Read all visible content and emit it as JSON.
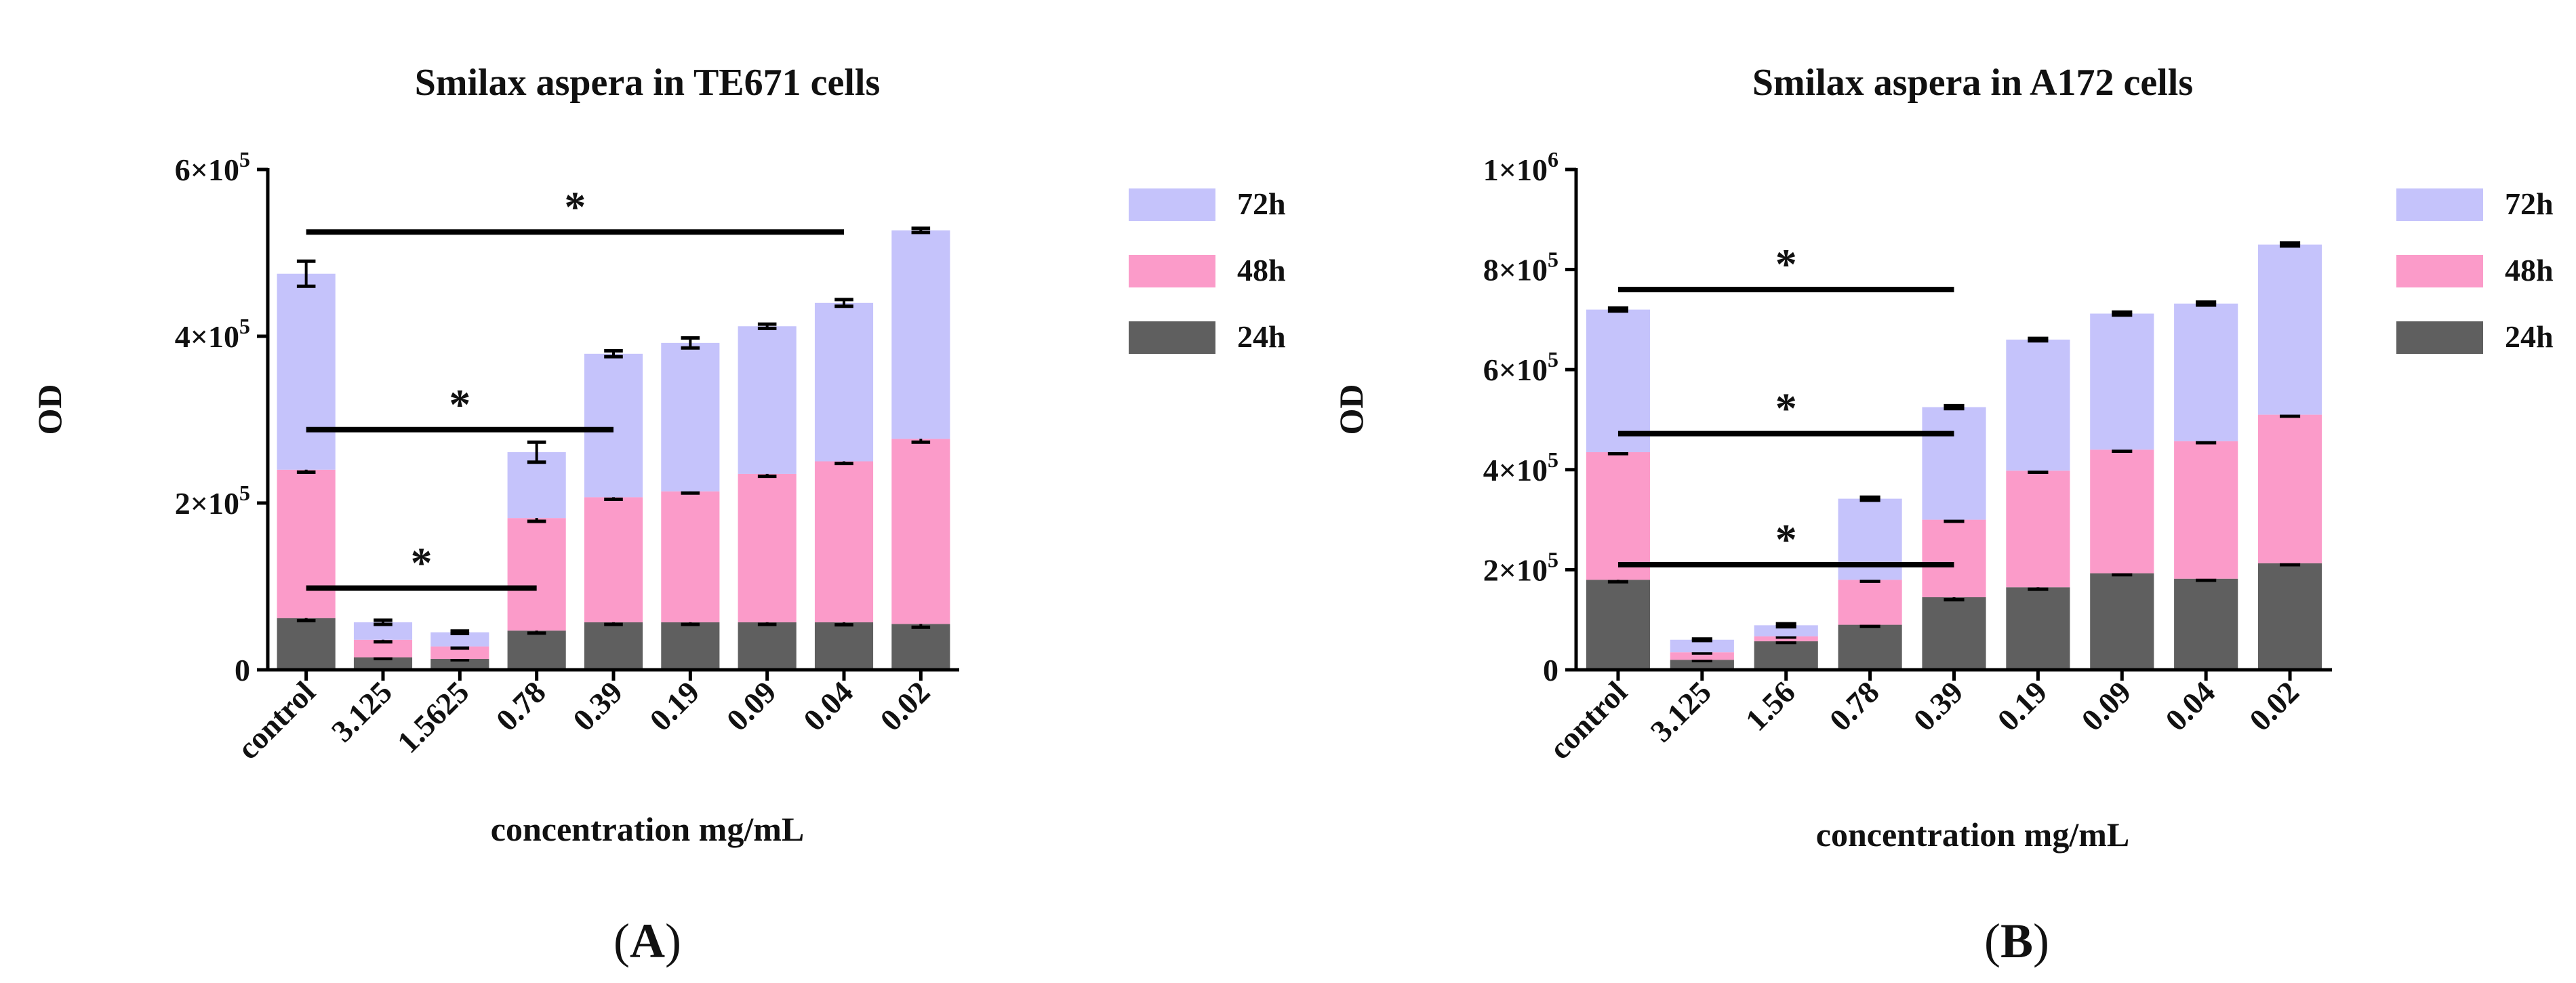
{
  "figure": {
    "colors": {
      "24h": "#5f5f5f",
      "48h": "#fb9bc9",
      "72h": "#c5c3fb",
      "axis": "#000000"
    }
  },
  "chart_data": [
    {
      "type": "bar",
      "stacked": true,
      "panel_label": "A",
      "title": "Smilax aspera in TE671 cells",
      "xlabel": "concentration mg/mL",
      "ylabel": "OD",
      "ylim": [
        0,
        600000
      ],
      "yticks": [
        0,
        200000,
        400000,
        600000
      ],
      "ytick_labels": [
        {
          "mant": "0",
          "exp": ""
        },
        {
          "mant": "2×10",
          "exp": "5"
        },
        {
          "mant": "4×10",
          "exp": "5"
        },
        {
          "mant": "6×10",
          "exp": "5"
        }
      ],
      "categories": [
        "control",
        "3.125",
        "1.5625",
        "0.78",
        "0.39",
        "0.19",
        "0.09",
        "0.04",
        "0.02"
      ],
      "series": [
        {
          "name": "24h",
          "values": [
            62000,
            15000,
            13000,
            47000,
            57000,
            57000,
            57000,
            57000,
            55000
          ]
        },
        {
          "name": "48h",
          "values": [
            178000,
            21000,
            15000,
            135000,
            150000,
            157000,
            178000,
            193000,
            222000
          ]
        },
        {
          "name": "72h",
          "values": [
            235000,
            21000,
            17000,
            79000,
            172000,
            178000,
            177000,
            190000,
            250000
          ]
        }
      ],
      "error": [
        [
          3000,
          1500,
          1000,
          3000,
          2500,
          2500,
          2500,
          3000,
          4000
        ],
        [
          3000,
          2500,
          2000,
          4000,
          2500,
          2000,
          3000,
          2500,
          4000
        ],
        [
          15000,
          2500,
          1500,
          12000,
          3500,
          6000,
          2500,
          4000,
          2500
        ]
      ],
      "legend": [
        "72h",
        "48h",
        "24h"
      ],
      "legend_position": "right",
      "significance": [
        {
          "from": "control",
          "to": "0.04",
          "y": 525000,
          "label": "*"
        },
        {
          "from": "control",
          "to": "0.39",
          "y": 288000,
          "label": "*"
        },
        {
          "from": "control",
          "to": "0.78",
          "y": 98000,
          "label": "*"
        }
      ]
    },
    {
      "type": "bar",
      "stacked": true,
      "panel_label": "B",
      "title": "Smilax aspera in A172 cells",
      "xlabel": "concentration mg/mL",
      "ylabel": "OD",
      "ylim": [
        0,
        1000000
      ],
      "yticks": [
        0,
        200000,
        400000,
        600000,
        800000,
        1000000
      ],
      "ytick_labels": [
        {
          "mant": "0",
          "exp": ""
        },
        {
          "mant": "2×10",
          "exp": "5"
        },
        {
          "mant": "4×10",
          "exp": "5"
        },
        {
          "mant": "6×10",
          "exp": "5"
        },
        {
          "mant": "8×10",
          "exp": "5"
        },
        {
          "mant": "1×10",
          "exp": "6"
        }
      ],
      "categories": [
        "control",
        "3.125",
        "1.56",
        "0.78",
        "0.39",
        "0.19",
        "0.09",
        "0.04",
        "0.02"
      ],
      "series": [
        {
          "name": "24h",
          "values": [
            180000,
            20000,
            57000,
            90000,
            145000,
            165000,
            193000,
            182000,
            213000
          ]
        },
        {
          "name": "48h",
          "values": [
            255000,
            15000,
            10000,
            90000,
            155000,
            233000,
            247000,
            275000,
            297000
          ]
        },
        {
          "name": "72h",
          "values": [
            285000,
            25000,
            22000,
            162000,
            225000,
            262000,
            272000,
            275000,
            340000
          ]
        }
      ],
      "error": [
        [
          4000,
          1500,
          2500,
          3000,
          5000,
          4000,
          3000,
          3000,
          3000
        ],
        [
          3000,
          1500,
          1500,
          3000,
          3000,
          3000,
          3000,
          3000,
          3000
        ],
        [
          3000,
          1500,
          3000,
          3000,
          3000,
          2500,
          3000,
          3000,
          3000
        ]
      ],
      "legend": [
        "72h",
        "48h",
        "24h"
      ],
      "legend_position": "right",
      "significance": [
        {
          "from": "control",
          "to": "0.39",
          "y": 760000,
          "label": "*"
        },
        {
          "from": "control",
          "to": "0.39",
          "y": 472000,
          "label": "*"
        },
        {
          "from": "control",
          "to": "0.39",
          "y": 210000,
          "label": "*"
        }
      ]
    }
  ]
}
